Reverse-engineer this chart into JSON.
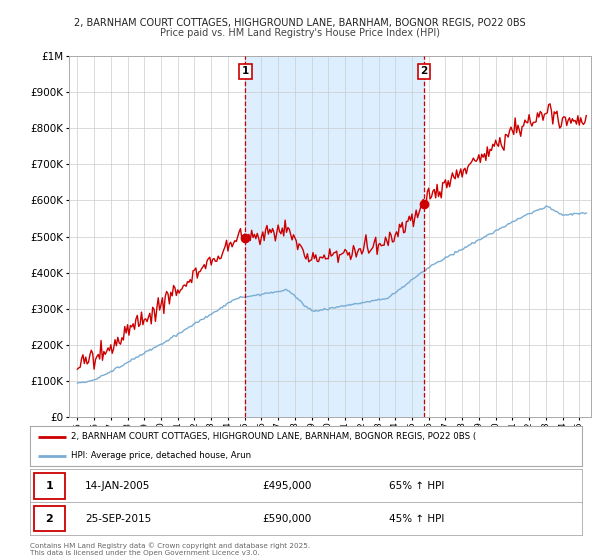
{
  "title_line1": "2, BARNHAM COURT COTTAGES, HIGHGROUND LANE, BARNHAM, BOGNOR REGIS, PO22 0BS",
  "title_line2": "Price paid vs. HM Land Registry's House Price Index (HPI)",
  "bg_color": "#ffffff",
  "plot_bg_color": "#ffffff",
  "grid_color": "#cccccc",
  "red_line_color": "#cc0000",
  "blue_line_color": "#7aadd4",
  "shade_color": "#ddeeff",
  "vline_color": "#cc0000",
  "sale1": {
    "date_num": 2005.04,
    "price": 495000,
    "label": "1",
    "date_str": "14-JAN-2005",
    "hpi_pct": "65%"
  },
  "sale2": {
    "date_num": 2015.73,
    "price": 590000,
    "label": "2",
    "date_str": "25-SEP-2015",
    "hpi_pct": "45%"
  },
  "ylim": [
    0,
    1000000
  ],
  "xlim_start": 1994.5,
  "xlim_end": 2025.7,
  "footer_text": "Contains HM Land Registry data © Crown copyright and database right 2025.\nThis data is licensed under the Open Government Licence v3.0.",
  "legend_label_red": "2, BARNHAM COURT COTTAGES, HIGHGROUND LANE, BARNHAM, BOGNOR REGIS, PO22 0BS (",
  "legend_label_blue": "HPI: Average price, detached house, Arun"
}
